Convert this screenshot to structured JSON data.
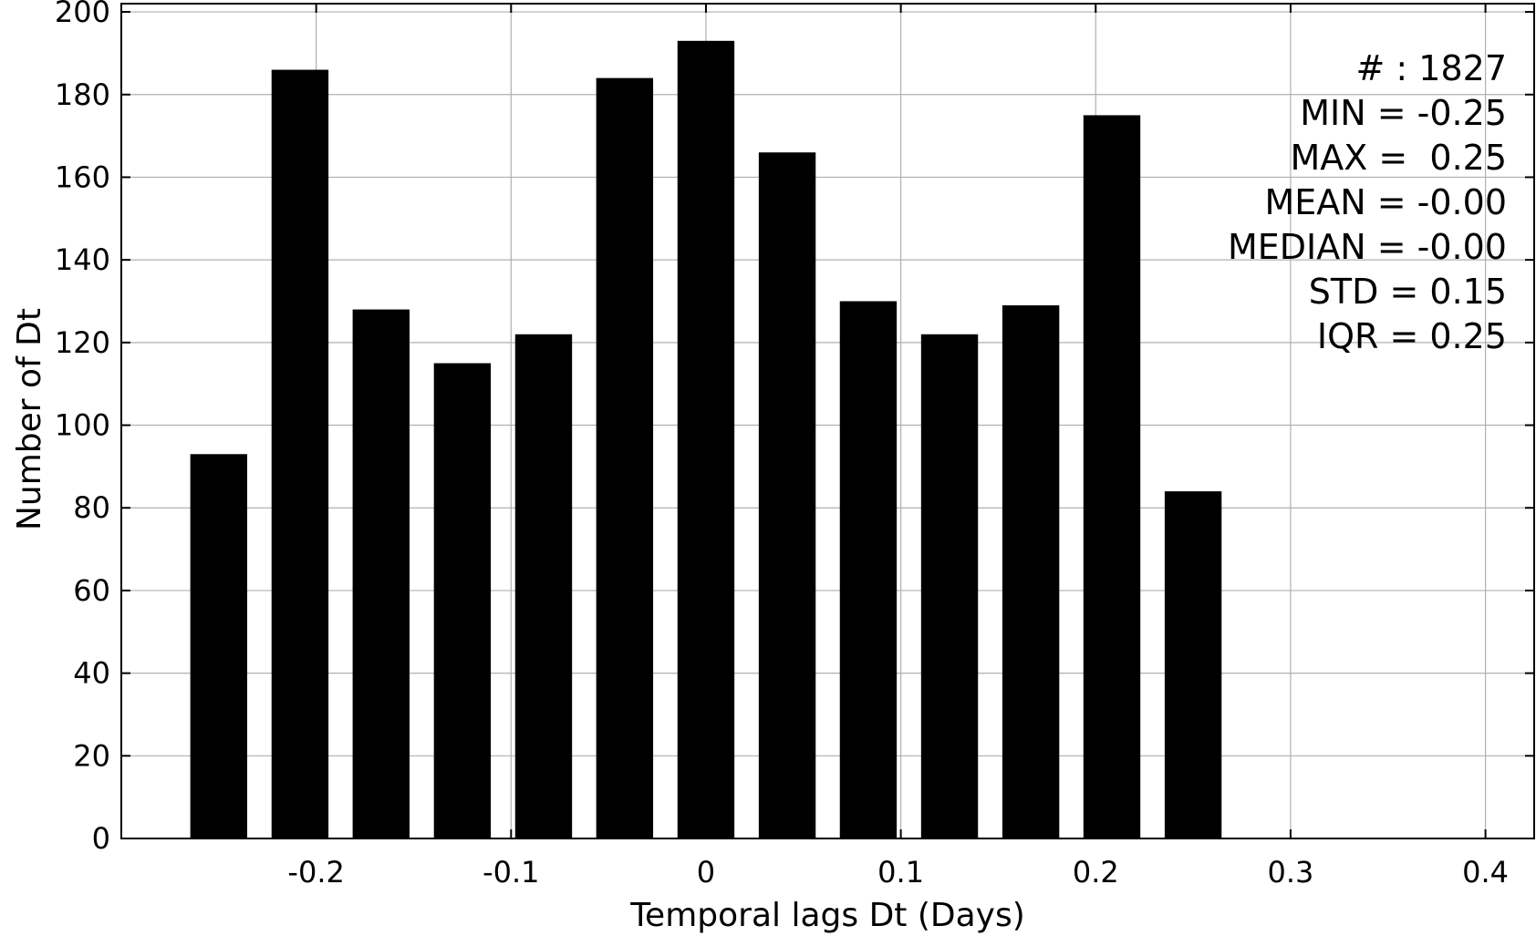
{
  "chart_data": {
    "type": "bar",
    "title": "",
    "xlabel": "Temporal lags Dt (Days)",
    "ylabel": "Number of Dt",
    "xlim": [
      -0.3,
      0.425
    ],
    "ylim": [
      0,
      202
    ],
    "x_ticks": [
      -0.2,
      -0.1,
      0,
      0.1,
      0.2,
      0.3,
      0.4
    ],
    "x_tick_labels": [
      "-0.2",
      "-0.1",
      "0",
      "0.1",
      "0.2",
      "0.3",
      "0.4"
    ],
    "y_ticks": [
      0,
      20,
      40,
      60,
      80,
      100,
      120,
      140,
      160,
      180,
      200
    ],
    "y_tick_labels": [
      "0",
      "20",
      "40",
      "60",
      "80",
      "100",
      "120",
      "140",
      "160",
      "180",
      "200"
    ],
    "grid": true,
    "bar_color": "#000000",
    "bar_width": 0.0292,
    "x": [
      -0.25,
      -0.2083,
      -0.1667,
      -0.125,
      -0.0833,
      -0.0417,
      0.0,
      0.0417,
      0.0833,
      0.125,
      0.1667,
      0.2083,
      0.25
    ],
    "values": [
      93,
      186,
      128,
      115,
      122,
      184,
      193,
      166,
      130,
      122,
      129,
      175,
      84
    ],
    "stats_lines": [
      "# : 1827",
      "MIN = -0.25",
      "MAX =  0.25",
      "MEAN = -0.00",
      "MEDIAN = -0.00",
      "STD = 0.15",
      "IQR = 0.25"
    ]
  }
}
